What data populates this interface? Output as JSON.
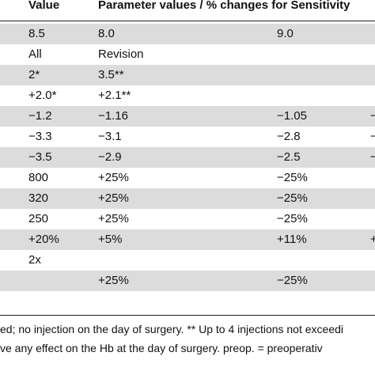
{
  "header": {
    "value_label": "Value",
    "params_label": "Parameter values / % changes for Sensitivity"
  },
  "rows": [
    {
      "c0": "8.5",
      "c1": "8.0",
      "c2": "9.0",
      "c3": ""
    },
    {
      "c0": "All",
      "c1": "Revision",
      "c2": "",
      "c3": ""
    },
    {
      "c0": "2*",
      "c1": "3.5**",
      "c2": "",
      "c3": ""
    },
    {
      "c0": "+2.0*",
      "c1": "+2.1**",
      "c2": "",
      "c3": ""
    },
    {
      "c0": "−1.2",
      "c1": "−1.16",
      "c2": "−1.05",
      "c3": "−"
    },
    {
      "c0": "−3.3",
      "c1": "−3.1",
      "c2": "−2.8",
      "c3": "−"
    },
    {
      "c0": "−3.5",
      "c1": "−2.9",
      "c2": "−2.5",
      "c3": "−"
    },
    {
      "c0": "800",
      "c1": "+25%",
      "c2": "−25%",
      "c3": ""
    },
    {
      "c0": "320",
      "c1": "+25%",
      "c2": "−25%",
      "c3": ""
    },
    {
      "c0": "250",
      "c1": "+25%",
      "c2": "−25%",
      "c3": ""
    },
    {
      "c0": "+20%",
      "c1": "+5%",
      "c2": "+11%",
      "c3": "+"
    },
    {
      "c0": "2x",
      "c1": "",
      "c2": "",
      "c3": ""
    },
    {
      "c0": "",
      "c1": "+25%",
      "c2": "−25%",
      "c3": ""
    }
  ],
  "footnotes": [
    "ed; no injection on the day of surgery. ** Up to 4 injections not exceedi",
    "ve any effect on the Hb at the day of surgery. preop. = preoperativ"
  ]
}
